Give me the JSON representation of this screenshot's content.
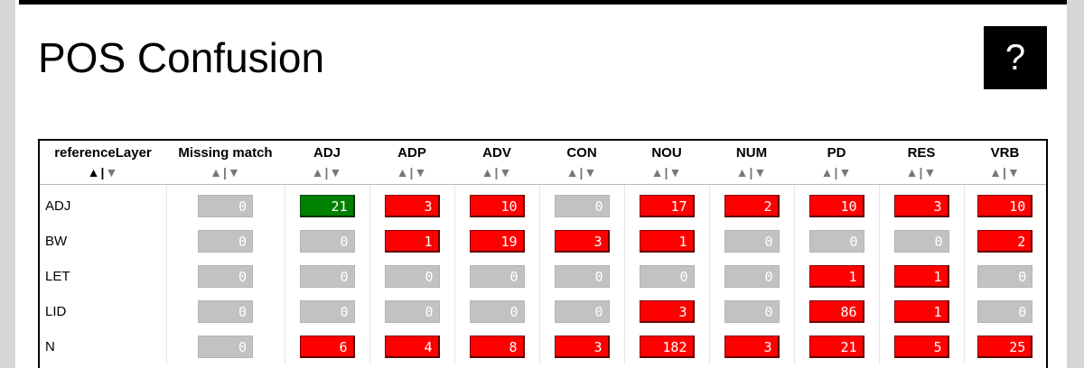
{
  "page": {
    "title": "POS Confusion",
    "help_label": "?"
  },
  "table": {
    "columns": [
      "referenceLayer",
      "Missing match",
      "ADJ",
      "ADP",
      "ADV",
      "CON",
      "NOU",
      "NUM",
      "PD",
      "RES",
      "VRB"
    ],
    "sort_up": "▲",
    "sort_sep": "|",
    "sort_down": "▼",
    "active_sort_column": "referenceLayer",
    "rows": [
      {
        "label": "ADJ",
        "values": [
          "0",
          "21",
          "3",
          "10",
          "0",
          "17",
          "2",
          "10",
          "3",
          "10"
        ]
      },
      {
        "label": "BW",
        "values": [
          "0",
          "0",
          "1",
          "19",
          "3",
          "1",
          "0",
          "0",
          "0",
          "2"
        ]
      },
      {
        "label": "LET",
        "values": [
          "0",
          "0",
          "0",
          "0",
          "0",
          "0",
          "0",
          "1",
          "1",
          "0"
        ]
      },
      {
        "label": "LID",
        "values": [
          "0",
          "0",
          "0",
          "0",
          "0",
          "3",
          "0",
          "86",
          "1",
          "0"
        ]
      },
      {
        "label": "N",
        "values": [
          "0",
          "6",
          "4",
          "8",
          "3",
          "182",
          "3",
          "21",
          "5",
          "25"
        ]
      }
    ]
  },
  "colors": {
    "match": "#008000",
    "mismatch": "#ff0000",
    "empty": "#c2c2c2"
  }
}
